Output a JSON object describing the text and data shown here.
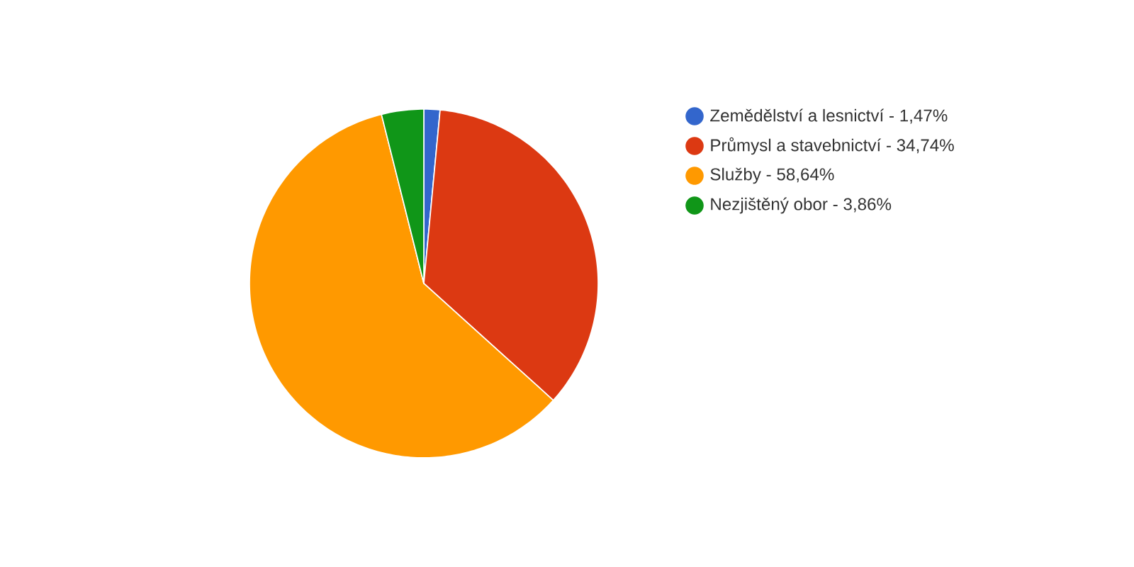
{
  "chart_data": {
    "type": "pie",
    "categories": [
      "Zemědělství a lesnictví - 1,47%",
      "Průmysl a stavebnictví - 34,74%",
      "Služby - 58,64%",
      "Nezjištěný obor - 3,86%"
    ],
    "values": [
      1.47,
      34.74,
      58.64,
      3.86
    ],
    "colors": [
      "#3366cc",
      "#dc3912",
      "#ff9900",
      "#109618"
    ],
    "legend": "right"
  }
}
